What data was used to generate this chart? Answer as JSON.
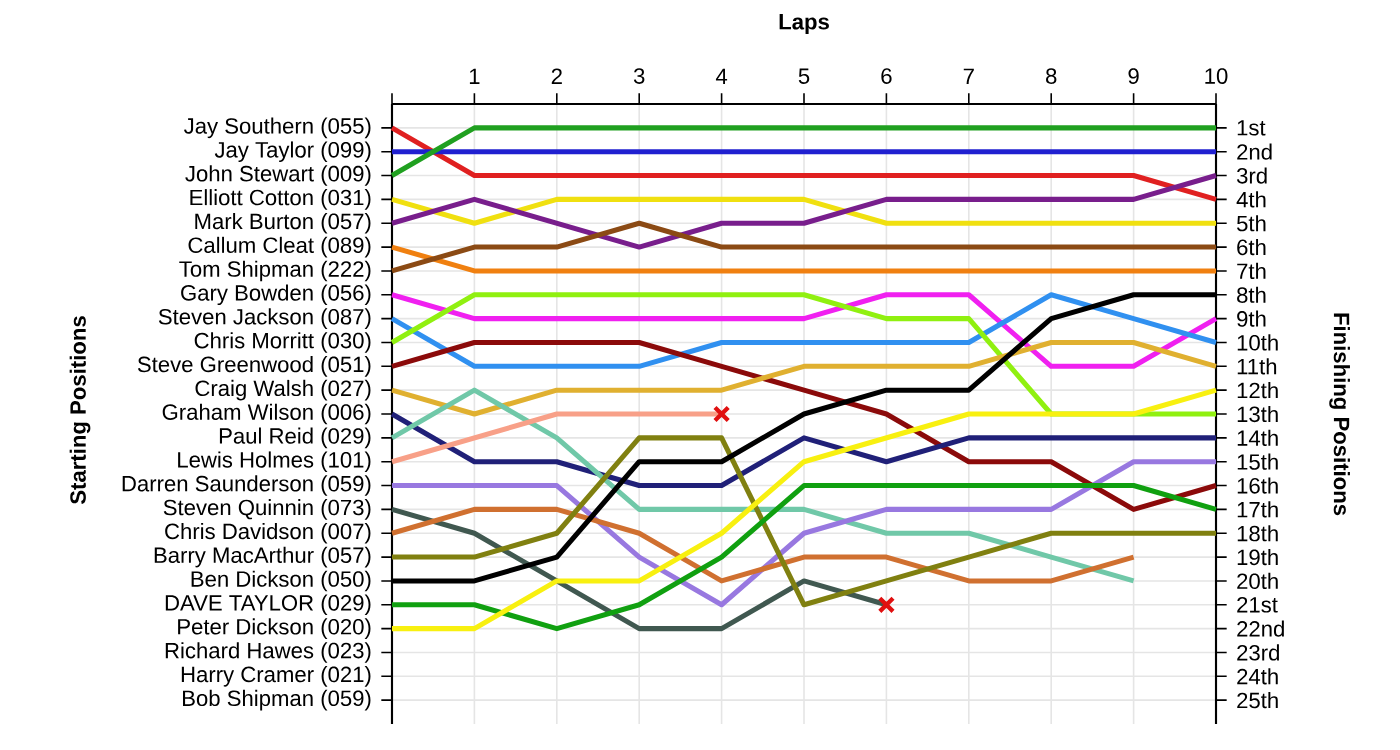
{
  "chart_data": {
    "type": "line",
    "xlabel": "Laps",
    "annotations": [
      "Starting Positions"
    ],
    "y2label": "Finishing Positions",
    "grid": true,
    "x": [
      0,
      1,
      2,
      3,
      4,
      5,
      6,
      7,
      8,
      9,
      10
    ],
    "xlim": [
      0,
      10
    ],
    "xticks": [
      {
        "value": 0,
        "label": null
      },
      1,
      2,
      3,
      4,
      5,
      6,
      7,
      8,
      9,
      10
    ],
    "y_categories": [
      "Jay Southern (055)",
      "Jay Taylor (099)",
      "John Stewart (009)",
      "Elliott Cotton (031)",
      "Mark Burton (057)",
      "Callum Cleat (089)",
      "Tom Shipman (222)",
      "Gary Bowden (056)",
      "Steven Jackson (087)",
      "Chris Morritt (030)",
      "Steve Greenwood (051)",
      "Craig Walsh (027)",
      "Graham Wilson (006)",
      "Paul Reid (029)",
      "Lewis Holmes (101)",
      "Darren Saunderson (059)",
      "Steven Quinnin (073)",
      "Chris Davidson (007)",
      "Barry MacArthur (057)",
      "Ben Dickson (050)",
      "DAVE TAYLOR (029)",
      "Peter Dickson (020)",
      "Richard Hawes (023)",
      "Harry Cramer (021)",
      "Bob Shipman (059)"
    ],
    "y2lim": [
      26,
      0
    ],
    "y2ticks": [
      {
        "value": 1,
        "label": "1st"
      },
      {
        "value": 2,
        "label": "2nd"
      },
      {
        "value": 3,
        "label": "3rd"
      },
      {
        "value": 4,
        "label": "4th"
      },
      {
        "value": 5,
        "label": "5th"
      },
      {
        "value": 6,
        "label": "6th"
      },
      {
        "value": 7,
        "label": "7th"
      },
      {
        "value": 8,
        "label": "8th"
      },
      {
        "value": 9,
        "label": "9th"
      },
      {
        "value": 10,
        "label": "10th"
      },
      {
        "value": 11,
        "label": "11th"
      },
      {
        "value": 12,
        "label": "12th"
      },
      {
        "value": 13,
        "label": "13th"
      },
      {
        "value": 14,
        "label": "14th"
      },
      {
        "value": 15,
        "label": "15th"
      },
      {
        "value": 16,
        "label": "16th"
      },
      {
        "value": 17,
        "label": "17th"
      },
      {
        "value": 18,
        "label": "18th"
      },
      {
        "value": 19,
        "label": "19th"
      },
      {
        "value": 20,
        "label": "20th"
      },
      {
        "value": 21,
        "label": "21st"
      },
      {
        "value": 22,
        "label": "22nd"
      },
      {
        "value": 23,
        "label": "23rd"
      },
      {
        "value": 24,
        "label": "24th"
      },
      {
        "value": 25,
        "label": "25th"
      }
    ],
    "series": [
      {
        "axis": "y2",
        "color": "#e02020",
        "values": [
          1,
          3,
          3,
          3,
          3,
          3,
          3,
          3,
          3,
          3,
          4
        ]
      },
      {
        "axis": "y2",
        "color": "#2020d0",
        "values": [
          2,
          2,
          2,
          2,
          2,
          2,
          2,
          2,
          2,
          2,
          2
        ]
      },
      {
        "axis": "y2",
        "color": "#20a020",
        "values": [
          3,
          1,
          1,
          1,
          1,
          1,
          1,
          1,
          1,
          1,
          1
        ]
      },
      {
        "axis": "y2",
        "color": "#f0e010",
        "values": [
          4,
          5,
          4,
          4,
          4,
          4,
          5,
          5,
          5,
          5,
          5
        ]
      },
      {
        "axis": "y2",
        "color": "#781e8c",
        "values": [
          5,
          4,
          5,
          6,
          5,
          5,
          4,
          4,
          4,
          4,
          3
        ]
      },
      {
        "axis": "y2",
        "color": "#f08010",
        "values": [
          6,
          7,
          7,
          7,
          7,
          7,
          7,
          7,
          7,
          7,
          7
        ]
      },
      {
        "axis": "y2",
        "color": "#8b4a14",
        "values": [
          7,
          6,
          6,
          5,
          6,
          6,
          6,
          6,
          6,
          6,
          6
        ]
      },
      {
        "axis": "y2",
        "color": "#f020f0",
        "values": [
          8,
          9,
          9,
          9,
          9,
          9,
          8,
          8,
          11,
          11,
          9
        ]
      },
      {
        "axis": "y2",
        "color": "#3090f0",
        "values": [
          9,
          11,
          11,
          11,
          10,
          10,
          10,
          10,
          8,
          9,
          10
        ]
      },
      {
        "axis": "y2",
        "color": "#90f010",
        "values": [
          10,
          8,
          8,
          8,
          8,
          8,
          9,
          9,
          13,
          13,
          13
        ]
      },
      {
        "axis": "y2",
        "color": "#8b0a0a",
        "values": [
          11,
          10,
          10,
          10,
          11,
          12,
          13,
          15,
          15,
          17,
          16
        ]
      },
      {
        "axis": "y2",
        "color": "#e0b030",
        "values": [
          12,
          13,
          12,
          12,
          12,
          11,
          11,
          11,
          10,
          10,
          11
        ]
      },
      {
        "axis": "y2",
        "color": "#202078",
        "values": [
          13,
          15,
          15,
          16,
          16,
          14,
          15,
          14,
          14,
          14,
          14
        ]
      },
      {
        "axis": "y2",
        "color": "#70c8a8",
        "values": [
          14,
          12,
          14,
          17,
          17,
          17,
          18,
          18,
          19,
          20,
          null
        ]
      },
      {
        "axis": "y2",
        "color": "#f8a088",
        "values": [
          15,
          14,
          13,
          13,
          13,
          null,
          null,
          null,
          null,
          null,
          null
        ]
      },
      {
        "axis": "y2",
        "color": "#9878e0",
        "values": [
          16,
          16,
          16,
          19,
          21,
          18,
          17,
          17,
          17,
          15,
          15
        ]
      },
      {
        "axis": "y2",
        "color": "#405850",
        "values": [
          17,
          18,
          20,
          22,
          22,
          20,
          21,
          null,
          null,
          null,
          null
        ]
      },
      {
        "axis": "y2",
        "color": "#d07030",
        "values": [
          18,
          17,
          17,
          18,
          20,
          19,
          19,
          20,
          20,
          19,
          null
        ]
      },
      {
        "axis": "y2",
        "color": "#808010",
        "values": [
          19,
          19,
          18,
          14,
          14,
          21,
          20,
          19,
          18,
          18,
          18
        ]
      },
      {
        "axis": "y2",
        "color": "#000000",
        "values": [
          20,
          20,
          19,
          15,
          15,
          13,
          12,
          12,
          9,
          8,
          8
        ]
      },
      {
        "axis": "y2",
        "color": "#10a010",
        "values": [
          21,
          21,
          22,
          21,
          19,
          16,
          16,
          16,
          16,
          16,
          17
        ]
      },
      {
        "axis": "y2",
        "color": "#f8f010",
        "values": [
          22,
          22,
          20,
          20,
          18,
          15,
          14,
          13,
          13,
          13,
          12
        ]
      },
      {
        "axis": "y2",
        "type": "scatter",
        "marker": "cross",
        "color": "#e01010",
        "x": [
          4,
          6
        ],
        "values": [
          13,
          21
        ]
      }
    ]
  }
}
